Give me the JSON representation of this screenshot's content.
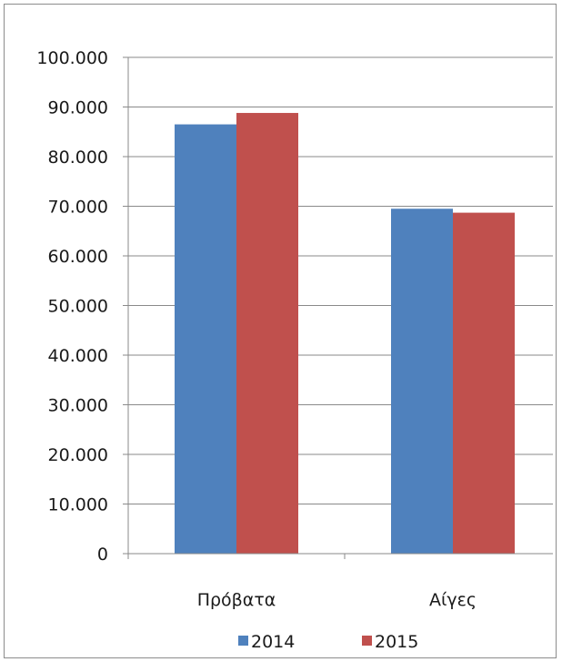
{
  "chart_data": {
    "type": "bar",
    "categories": [
      "Πρόβατα",
      "Αίγες"
    ],
    "series": [
      {
        "name": "2014",
        "color": "#4f81bd",
        "values": [
          86500,
          69500
        ]
      },
      {
        "name": "2015",
        "color": "#c0504d",
        "values": [
          88800,
          68700
        ]
      }
    ],
    "ylim": [
      0,
      100000
    ],
    "yticks": [
      0,
      10000,
      20000,
      30000,
      40000,
      50000,
      60000,
      70000,
      80000,
      90000,
      100000
    ],
    "ytick_labels": [
      "0",
      "10.000",
      "20.000",
      "30.000",
      "40.000",
      "50.000",
      "60.000",
      "70.000",
      "80.000",
      "90.000",
      "100.000"
    ],
    "grid": true,
    "legend": "bottom",
    "title": "",
    "xlabel": "",
    "ylabel": ""
  }
}
